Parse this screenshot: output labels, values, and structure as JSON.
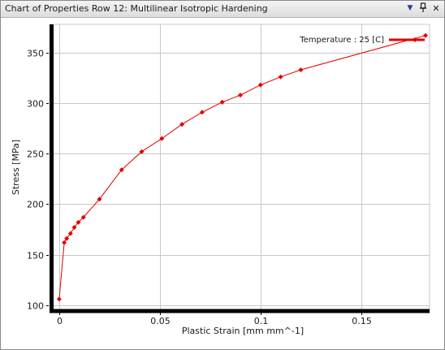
{
  "window": {
    "title": "Chart of Properties Row 12: Multilinear Isotropic Hardening",
    "menu_glyph": "▼",
    "pin_glyph": "ᵍ",
    "close_glyph": "✕"
  },
  "chart_data": {
    "type": "line",
    "title": "",
    "xlabel": "Plastic Strain  [mm mm^-1]",
    "ylabel": "Stress  [MPa]",
    "xlim": [
      -0.004,
      0.184
    ],
    "ylim": [
      95,
      378
    ],
    "xticks": [
      0,
      0.05,
      0.1,
      0.15
    ],
    "xtick_labels": [
      "0",
      "0.05",
      "0.1",
      "0.15"
    ],
    "yticks": [
      100,
      150,
      200,
      250,
      300,
      350
    ],
    "ytick_labels": [
      "100",
      "150",
      "200",
      "250",
      "300",
      "350"
    ],
    "grid": true,
    "legend_position": "top-right",
    "series": [
      {
        "name": "Temperature : 25 [C]",
        "color": "#e60000",
        "x": [
          0,
          0.0025,
          0.0037,
          0.0056,
          0.0075,
          0.0095,
          0.012,
          0.02,
          0.031,
          0.041,
          0.051,
          0.061,
          0.071,
          0.081,
          0.09,
          0.1,
          0.11,
          0.12,
          0.182
        ],
        "y": [
          106,
          162,
          166,
          171,
          177,
          182,
          187,
          205,
          234,
          252,
          265,
          279,
          291,
          301,
          308,
          318,
          326,
          333,
          367
        ]
      }
    ]
  }
}
